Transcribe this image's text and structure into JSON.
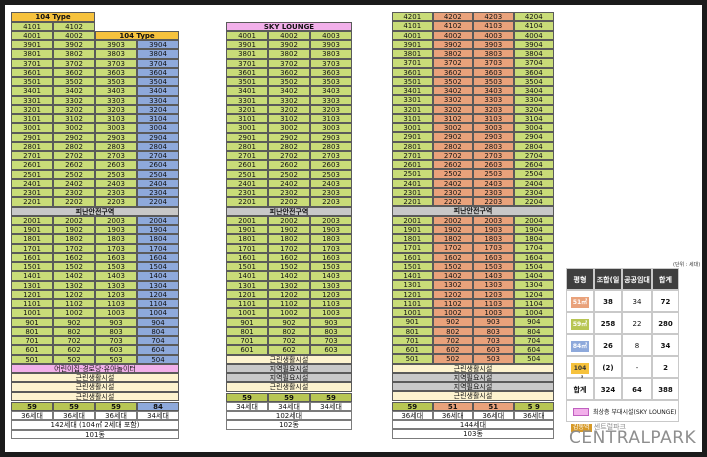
{
  "b101": {
    "type_label_left": "104 Type",
    "type_label_right": "104 Type",
    "top_row": [
      "4101",
      "4102"
    ],
    "refuge_label": "피난안전구역",
    "facilities": [
      "어린이집·경로당·유아놀이터",
      "근린생활시설",
      "근린생활시설",
      "근린생활시설"
    ],
    "sizes": [
      "59",
      "59",
      "59",
      "84"
    ],
    "households": [
      "36세대",
      "36세대",
      "36세대",
      "34세대"
    ],
    "total": "142세대 (104㎡ 2세대 포함)",
    "name": "101동"
  },
  "b102": {
    "sky_label": "SKY LOUNGE",
    "facilities": [
      "근린생활시설",
      "지역필요시설",
      "지역필요시설",
      "근린생활시설"
    ],
    "refuge_label": "피난안전구역",
    "sizes": [
      "59",
      "59",
      "59"
    ],
    "households": [
      "34세대",
      "34세대",
      "34세대"
    ],
    "total": "102세대",
    "name": "102동"
  },
  "b103": {
    "refuge_label": "피난안전구역",
    "facilities": [
      "근린생활시설",
      "지역필요시설",
      "지역필요시설",
      "근린생활시설"
    ],
    "sizes": [
      "59",
      "51",
      "51",
      "5 9"
    ],
    "households": [
      "36세대",
      "36세대",
      "36세대",
      "36세대"
    ],
    "total": "144세대",
    "name": "103동"
  },
  "legend": {
    "unit": "(단위 : 세대)",
    "headers": [
      "평형",
      "조합(일반)",
      "공공임대",
      "합계"
    ],
    "rows": [
      {
        "type": "51㎡",
        "color": "#e9a27b",
        "text_color": "#ffffff",
        "a": "38",
        "b": "34",
        "c": "72"
      },
      {
        "type": "59㎡",
        "color": "#b8c654",
        "text_color": "#ffffff",
        "a": "258",
        "b": "22",
        "c": "280"
      },
      {
        "type": "84㎡",
        "color": "#8ea9db",
        "text_color": "#ffffff",
        "a": "26",
        "b": "8",
        "c": "34"
      },
      {
        "type": "104㎡",
        "color": "#f6c23d",
        "text_color": "#333333",
        "a": "(2)",
        "b": "-",
        "c": "2"
      }
    ],
    "total_row": {
      "label": "합계",
      "a": "324",
      "b": "64",
      "c": "388"
    },
    "sky_note": "최상층 부대시설(SKY LOUNGE)",
    "sky_color": "#f2b0ea"
  },
  "logo": {
    "small_box": "감동역",
    "small_text": "센트럴파크",
    "big": "CENTRALPARK"
  }
}
